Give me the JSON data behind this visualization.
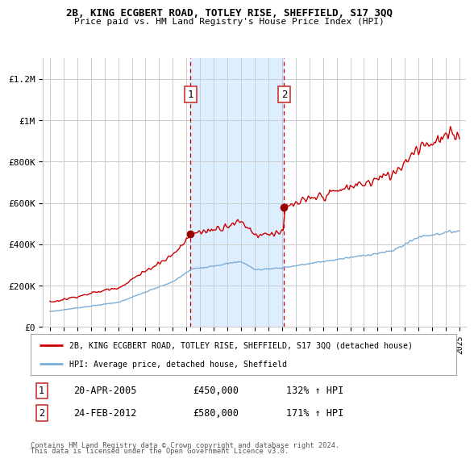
{
  "title1": "2B, KING ECGBERT ROAD, TOTLEY RISE, SHEFFIELD, S17 3QQ",
  "title2": "Price paid vs. HM Land Registry's House Price Index (HPI)",
  "ylabel_ticks": [
    "£0",
    "£200K",
    "£400K",
    "£600K",
    "£800K",
    "£1M",
    "£1.2M"
  ],
  "ylabel_values": [
    0,
    200000,
    400000,
    600000,
    800000,
    1000000,
    1200000
  ],
  "ylim": [
    0,
    1300000
  ],
  "xlim_start": 1994.5,
  "xlim_end": 2025.5,
  "transaction1_x": 2005.3,
  "transaction1_price": 450000,
  "transaction1_label": "1",
  "transaction2_x": 2012.15,
  "transaction2_price": 580000,
  "transaction2_label": "2",
  "shade_x1_start": 2005.3,
  "shade_x1_end": 2012.15,
  "legend_line1": "2B, KING ECGBERT ROAD, TOTLEY RISE, SHEFFIELD, S17 3QQ (detached house)",
  "legend_line2": "HPI: Average price, detached house, Sheffield",
  "footnote1": "Contains HM Land Registry data © Crown copyright and database right 2024.",
  "footnote2": "This data is licensed under the Open Government Licence v3.0.",
  "table_row1_num": "1",
  "table_row1_date": "20-APR-2005",
  "table_row1_price": "£450,000",
  "table_row1_hpi": "132% ↑ HPI",
  "table_row2_num": "2",
  "table_row2_date": "24-FEB-2012",
  "table_row2_price": "£580,000",
  "table_row2_hpi": "171% ↑ HPI",
  "red_line_color": "#cc0000",
  "blue_line_color": "#7aadd8",
  "shade_color": "#ddeeff",
  "grid_color": "#cccccc",
  "background_color": "#ffffff",
  "box_edge_color": "#cc3333"
}
